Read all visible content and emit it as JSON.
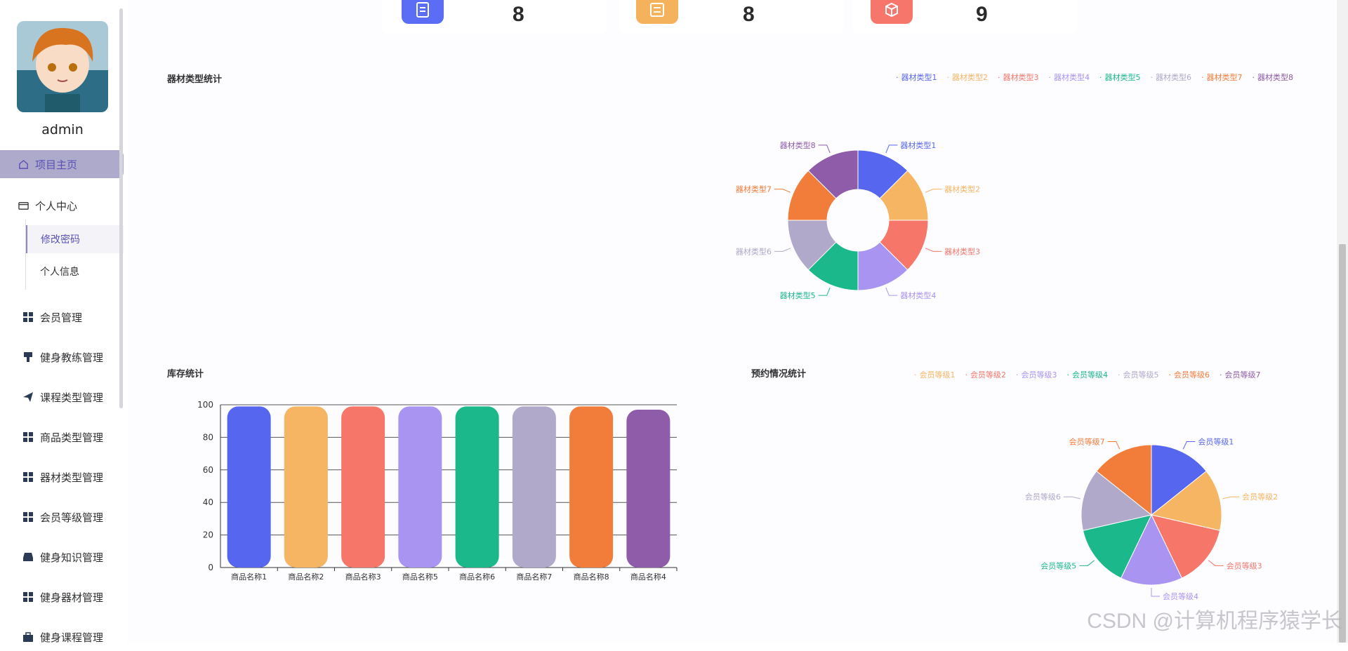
{
  "user": {
    "name": "admin"
  },
  "sidebar": {
    "home": "项目主页",
    "personal": "个人中心",
    "sub_items": [
      "修改密码",
      "个人信息"
    ],
    "items": [
      "会员管理",
      "健身教练管理",
      "课程类型管理",
      "商品类型管理",
      "器材类型管理",
      "会员等级管理",
      "健身知识管理",
      "健身器材管理",
      "健身课程管理"
    ]
  },
  "stats": [
    {
      "value": "8",
      "color": "#5b6cf5"
    },
    {
      "value": "8",
      "color": "#f5b25c"
    },
    {
      "value": "9",
      "color": "#f6766c"
    }
  ],
  "equipment_chart": {
    "title": "器材类型统计",
    "legend": [
      "器材类型1",
      "器材类型2",
      "器材类型3",
      "器材类型4",
      "器材类型5",
      "器材类型6",
      "器材类型7",
      "器材类型8"
    ]
  },
  "stock_chart": {
    "title": "库存统计"
  },
  "booking_chart": {
    "title": "预约情况统计",
    "legend": [
      "会员等级1",
      "会员等级2",
      "会员等级3",
      "会员等级4",
      "会员等级5",
      "会员等级6",
      "会员等级7"
    ],
    "extra_label": "会员等级"
  },
  "watermark": "CSDN @计算机程序猿学长",
  "colors": [
    "#5766ee",
    "#f6b562",
    "#f6766a",
    "#a994f2",
    "#1bb88c",
    "#b0a9ca",
    "#f27c3a",
    "#8e5ca8"
  ],
  "chart_data": [
    {
      "type": "pie",
      "title": "器材类型统计",
      "categories": [
        "器材类型1",
        "器材类型2",
        "器材类型3",
        "器材类型4",
        "器材类型5",
        "器材类型6",
        "器材类型7",
        "器材类型8"
      ],
      "values": [
        1,
        1,
        1,
        1,
        1,
        1,
        1,
        1
      ],
      "donut": true
    },
    {
      "type": "bar",
      "title": "库存统计",
      "categories": [
        "商品名称1",
        "商品名称2",
        "商品名称3",
        "商品名称5",
        "商品名称6",
        "商品名称7",
        "商品名称8",
        "商品名称4"
      ],
      "values": [
        99,
        99,
        99,
        99,
        99,
        99,
        99,
        97
      ],
      "ylim": [
        0,
        100
      ],
      "yticks": [
        0,
        20,
        40,
        60,
        80,
        100
      ]
    },
    {
      "type": "pie",
      "title": "预约情况统计",
      "categories": [
        "会员等级1",
        "会员等级2",
        "会员等级3",
        "会员等级4",
        "会员等级5",
        "会员等级6",
        "会员等级7"
      ],
      "values": [
        1,
        1,
        1,
        1,
        1,
        1,
        1
      ],
      "donut": false
    }
  ]
}
